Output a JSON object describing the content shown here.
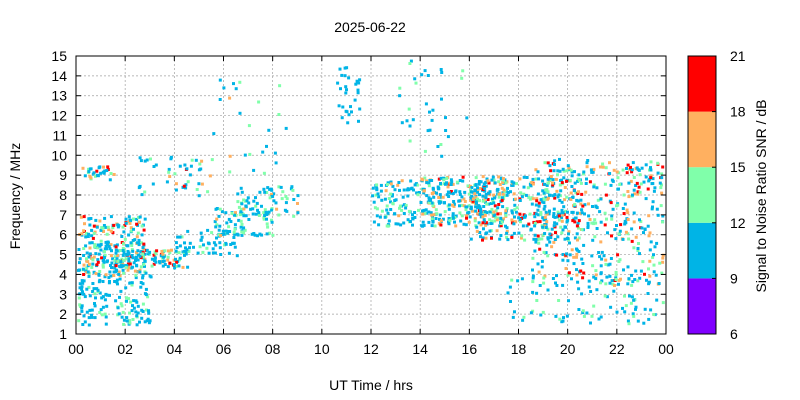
{
  "chart_data": {
    "type": "heatmap",
    "title": "2025-06-22",
    "xlabel": "UT Time / hrs",
    "ylabel": "Frequency / MHz",
    "xlim": [
      0,
      24
    ],
    "ylim": [
      1,
      15
    ],
    "x_ticks": [
      "00",
      "02",
      "04",
      "06",
      "08",
      "10",
      "12",
      "14",
      "16",
      "18",
      "20",
      "22",
      "00"
    ],
    "y_ticks": [
      "1",
      "2",
      "3",
      "4",
      "5",
      "6",
      "7",
      "8",
      "9",
      "10",
      "11",
      "12",
      "13",
      "14",
      "15"
    ],
    "grid": true,
    "colorbar": {
      "label": "Signal to Noise Ratio SNR / dB",
      "ticks": [
        "6",
        "9",
        "12",
        "15",
        "18",
        "21"
      ],
      "range": [
        6,
        21
      ],
      "bands": [
        {
          "min": 6,
          "max": 9,
          "color": "#8000ff"
        },
        {
          "min": 9,
          "max": 12,
          "color": "#00b4e6"
        },
        {
          "min": 12,
          "max": 15,
          "color": "#80ffaa"
        },
        {
          "min": 15,
          "max": 18,
          "color": "#ffb060"
        },
        {
          "min": 18,
          "max": 21,
          "color": "#ff0000"
        }
      ]
    },
    "clusters": [
      {
        "t": [
          0.0,
          3.0
        ],
        "f": [
          1.5,
          4.0
        ],
        "snr": [
          9,
          14
        ],
        "count": 140
      },
      {
        "t": [
          0.0,
          2.8
        ],
        "f": [
          4.0,
          7.0
        ],
        "snr": [
          9,
          20
        ],
        "count": 260
      },
      {
        "t": [
          0.2,
          1.5
        ],
        "f": [
          8.8,
          9.5
        ],
        "snr": [
          9,
          20
        ],
        "count": 30
      },
      {
        "t": [
          2.5,
          5.5
        ],
        "f": [
          8.0,
          10.0
        ],
        "snr": [
          9,
          19
        ],
        "count": 45
      },
      {
        "t": [
          1.5,
          4.5
        ],
        "f": [
          4.4,
          5.3
        ],
        "snr": [
          9,
          20
        ],
        "count": 120
      },
      {
        "t": [
          4.0,
          6.5
        ],
        "f": [
          5.0,
          6.3
        ],
        "snr": [
          9,
          13
        ],
        "count": 60
      },
      {
        "t": [
          5.5,
          8.0
        ],
        "f": [
          6.0,
          7.5
        ],
        "snr": [
          9,
          16
        ],
        "count": 80
      },
      {
        "t": [
          6.5,
          9.0
        ],
        "f": [
          7.0,
          8.5
        ],
        "snr": [
          9,
          16
        ],
        "count": 60
      },
      {
        "t": [
          5.5,
          8.5
        ],
        "f": [
          9.0,
          14.0
        ],
        "snr": [
          9,
          16
        ],
        "count": 25
      },
      {
        "t": [
          10.5,
          11.5
        ],
        "f": [
          11.5,
          14.5
        ],
        "snr": [
          9,
          12
        ],
        "count": 30
      },
      {
        "t": [
          12.0,
          14.5
        ],
        "f": [
          6.5,
          8.8
        ],
        "snr": [
          9,
          16
        ],
        "count": 120
      },
      {
        "t": [
          14.0,
          17.5
        ],
        "f": [
          6.5,
          9.0
        ],
        "snr": [
          9,
          19
        ],
        "count": 260
      },
      {
        "t": [
          16.0,
          20.5
        ],
        "f": [
          5.8,
          9.0
        ],
        "snr": [
          9,
          20
        ],
        "count": 320
      },
      {
        "t": [
          18.5,
          24.0
        ],
        "f": [
          3.5,
          9.5
        ],
        "snr": [
          9,
          20
        ],
        "count": 380
      },
      {
        "t": [
          17.5,
          24.0
        ],
        "f": [
          1.5,
          4.0
        ],
        "snr": [
          9,
          14
        ],
        "count": 90
      },
      {
        "t": [
          13.0,
          16.0
        ],
        "f": [
          10.0,
          15.0
        ],
        "snr": [
          9,
          14
        ],
        "count": 35
      },
      {
        "t": [
          19.0,
          24.0
        ],
        "f": [
          9.3,
          9.9
        ],
        "snr": [
          9,
          20
        ],
        "count": 30
      }
    ]
  }
}
